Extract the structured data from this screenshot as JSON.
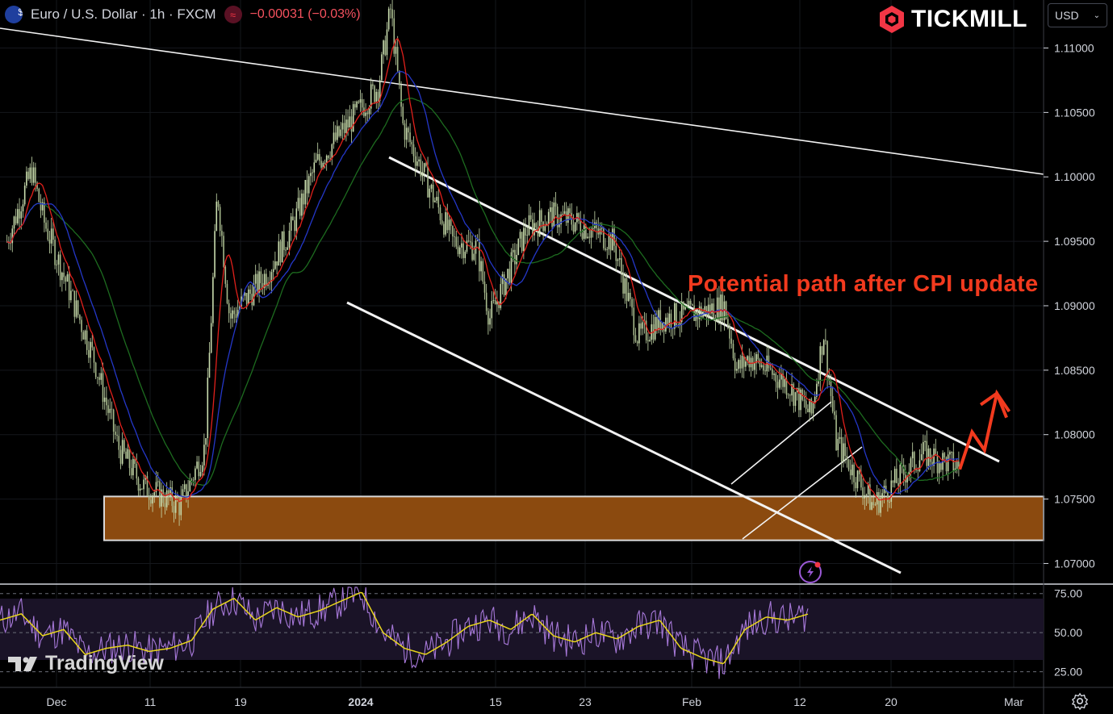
{
  "header": {
    "symbol": "Euro / U.S. Dollar · 1h · FXCM",
    "change": "−0.00031 (−0.03%)",
    "flag_icon": "eur-usd-flag-icon",
    "indicator_icon": "wave-icon"
  },
  "brand": {
    "name": "TICKMILL",
    "color": "#f23645"
  },
  "currency_select": {
    "value": "USD"
  },
  "annotation": {
    "text": "Potential path after CPI update",
    "color": "#f23a1e"
  },
  "watermark": {
    "text": "TradingView"
  },
  "colors": {
    "up": "#c9dcae",
    "down": "#c9dcae",
    "ma_red": "#e0201b",
    "ma_blue": "#2437c8",
    "ma_green": "#1d6b1f",
    "zone": "#8b4a0f",
    "rsi": "#a678d8",
    "rsi_signal": "#e8d61c"
  },
  "chart_data": [
    {
      "type": "candlestick",
      "title": "Euro / U.S. Dollar · 1h · FXCM",
      "y_ticks": [
        "1.11000",
        "1.10500",
        "1.10000",
        "1.09500",
        "1.09000",
        "1.08500",
        "1.08000",
        "1.07500",
        "1.07000"
      ],
      "ylim": [
        1.0684,
        1.1136
      ],
      "x_ticks": [
        "Dec",
        "11",
        "19",
        "2024",
        "15",
        "23",
        "Feb",
        "12",
        "20",
        "Mar"
      ],
      "price_path": [
        {
          "x": "Nov 27",
          "y": 1.095
        },
        {
          "x": "Nov 29",
          "y": 1.1005
        },
        {
          "x": "Nov 30",
          "y": 1.0965
        },
        {
          "x": "Dec 4",
          "y": 1.086
        },
        {
          "x": "Dec 6",
          "y": 1.079
        },
        {
          "x": "Dec 8",
          "y": 1.076
        },
        {
          "x": "Dec 11",
          "y": 1.0745
        },
        {
          "x": "Dec 13",
          "y": 1.079
        },
        {
          "x": "Dec 14",
          "y": 1.099
        },
        {
          "x": "Dec 15",
          "y": 1.089
        },
        {
          "x": "Dec 18",
          "y": 1.0925
        },
        {
          "x": "Dec 20",
          "y": 1.096
        },
        {
          "x": "Dec 22",
          "y": 1.101
        },
        {
          "x": "Dec 27",
          "y": 1.107
        },
        {
          "x": "Dec 28",
          "y": 1.113
        },
        {
          "x": "Dec 29",
          "y": 1.104
        },
        {
          "x": "Jan 2",
          "y": 1.095
        },
        {
          "x": "Jan 4",
          "y": 1.0945
        },
        {
          "x": "Jan 5",
          "y": 1.089
        },
        {
          "x": "Jan 8",
          "y": 1.096
        },
        {
          "x": "Jan 10",
          "y": 1.097
        },
        {
          "x": "Jan 12",
          "y": 1.0965
        },
        {
          "x": "Jan 15",
          "y": 1.095
        },
        {
          "x": "Jan 17",
          "y": 1.0875
        },
        {
          "x": "Jan 19",
          "y": 1.089
        },
        {
          "x": "Jan 22",
          "y": 1.0895
        },
        {
          "x": "Jan 24",
          "y": 1.09
        },
        {
          "x": "Jan 25",
          "y": 1.085
        },
        {
          "x": "Jan 26",
          "y": 1.086
        },
        {
          "x": "Jan 29",
          "y": 1.084
        },
        {
          "x": "Jan 31",
          "y": 1.0815
        },
        {
          "x": "Feb 1",
          "y": 1.088
        },
        {
          "x": "Feb 2",
          "y": 1.0795
        },
        {
          "x": "Feb 5",
          "y": 1.0745
        },
        {
          "x": "Feb 7",
          "y": 1.0765
        },
        {
          "x": "Feb 9",
          "y": 1.0785
        },
        {
          "x": "Feb 12",
          "y": 1.0775
        }
      ],
      "support_zone": [
        1.0718,
        1.0752
      ],
      "projection": [
        {
          "x": "Feb 12",
          "y": 1.0773
        },
        {
          "x": "Feb 13",
          "y": 1.0802
        },
        {
          "x": "Feb 14",
          "y": 1.0788
        },
        {
          "x": "Feb 15",
          "y": 1.0832
        },
        {
          "x": "Feb 16",
          "y": 1.0818
        }
      ]
    },
    {
      "type": "line",
      "title": "RSI",
      "y_ticks": [
        "75.00",
        "50.00",
        "25.00"
      ],
      "ylim": [
        15,
        80
      ],
      "series": [
        {
          "values": [
            58,
            62,
            48,
            52,
            36,
            40,
            42,
            38,
            40,
            45,
            65,
            72,
            58,
            66,
            60,
            64,
            70,
            76,
            50,
            40,
            36,
            44,
            54,
            58,
            52,
            62,
            48,
            44,
            50,
            46,
            54,
            58,
            40,
            34,
            30,
            52,
            60,
            58,
            62
          ]
        }
      ]
    }
  ]
}
